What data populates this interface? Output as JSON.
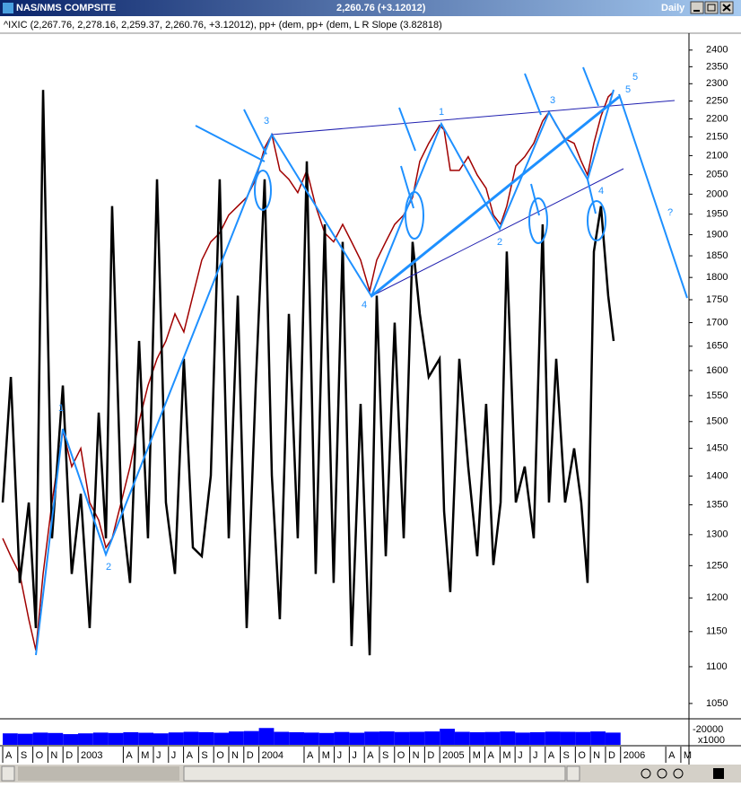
{
  "window": {
    "title": "NAS/NMS COMPSITE",
    "quote": "2,260.76 (+3.12012)",
    "interval": "Daily"
  },
  "legend": "^IXIC (2,267.76, 2,278.16, 2,259.37, 2,260.76, +3.12012), pp+ (dem, pp+ (dem, L R Slope (3.82818)",
  "chart_data": {
    "type": "line",
    "log_y": true,
    "x": [
      0,
      0.54,
      1.13,
      1.73,
      2.2,
      2.68,
      3.27,
      3.99,
      4.58,
      5.18,
      5.77,
      6.37,
      6.85,
      7.26,
      7.86,
      8.45,
      9.05,
      9.64,
      10.24,
      10.83,
      11.43,
      12.02,
      12.62,
      13.21,
      13.81,
      14.4,
      15,
      15.6,
      16.19,
      16.79,
      17.38,
      17.86,
      18.39,
      18.99,
      19.58,
      20.18,
      20.77,
      21.37,
      21.96,
      22.56,
      23.15,
      23.75,
      24.35,
      24.82,
      25.42,
      26.01,
      26.61,
      27.2,
      27.68,
      28.27,
      28.99,
      29.29,
      29.7,
      30.3,
      30.89,
      31.49,
      32.08,
      32.56,
      33.04,
      33.45,
      34.05,
      34.64,
      35.24,
      35.83,
      36.25,
      36.73,
      37.32,
      37.92,
      38.39,
      38.81,
      39.23,
      39.7,
      40.18,
      40.54
    ],
    "xlim": [
      -0.18,
      45.54
    ],
    "xticks": [
      {
        "value": 0,
        "label": "A"
      },
      {
        "value": 1,
        "label": "S"
      },
      {
        "value": 2,
        "label": "O"
      },
      {
        "value": 3,
        "label": "N"
      },
      {
        "value": 4,
        "label": "D"
      },
      {
        "value": 5,
        "label": "2003"
      },
      {
        "value": 8,
        "label": "A"
      },
      {
        "value": 9,
        "label": "M"
      },
      {
        "value": 10,
        "label": "J"
      },
      {
        "value": 11,
        "label": "J"
      },
      {
        "value": 12,
        "label": "A"
      },
      {
        "value": 13,
        "label": "S"
      },
      {
        "value": 14,
        "label": "O"
      },
      {
        "value": 15,
        "label": "N"
      },
      {
        "value": 16,
        "label": "D"
      },
      {
        "value": 17,
        "label": "2004"
      },
      {
        "value": 20,
        "label": "A"
      },
      {
        "value": 21,
        "label": "M"
      },
      {
        "value": 22,
        "label": "J"
      },
      {
        "value": 23,
        "label": "J"
      },
      {
        "value": 24,
        "label": "A"
      },
      {
        "value": 25,
        "label": "S"
      },
      {
        "value": 26,
        "label": "O"
      },
      {
        "value": 27,
        "label": "N"
      },
      {
        "value": 28,
        "label": "D"
      },
      {
        "value": 29,
        "label": "2005"
      },
      {
        "value": 31,
        "label": "M"
      },
      {
        "value": 32,
        "label": "A"
      },
      {
        "value": 33,
        "label": "M"
      },
      {
        "value": 34,
        "label": "J"
      },
      {
        "value": 35,
        "label": "J"
      },
      {
        "value": 36,
        "label": "A"
      },
      {
        "value": 37,
        "label": "S"
      },
      {
        "value": 38,
        "label": "O"
      },
      {
        "value": 39,
        "label": "N"
      },
      {
        "value": 40,
        "label": "D"
      },
      {
        "value": 41,
        "label": "2006"
      },
      {
        "value": 44,
        "label": "A"
      },
      {
        "value": 45,
        "label": "M"
      }
    ],
    "ylim": [
      1031,
      2449
    ],
    "yticks": [
      1050,
      1100,
      1150,
      1200,
      1250,
      1300,
      1350,
      1400,
      1450,
      1500,
      1550,
      1600,
      1650,
      1700,
      1750,
      1800,
      1850,
      1900,
      1950,
      2000,
      2050,
      2100,
      2150,
      2200,
      2250,
      2300,
      2350,
      2400
    ],
    "series": [
      {
        "color": "#a00000",
        "values": [
          1294,
          1265,
          1237,
          1168,
          1123,
          1237,
          1354,
          1483,
          1417,
          1450,
          1354,
          1324,
          1279,
          1294,
          1354,
          1417,
          1500,
          1570,
          1624,
          1661,
          1719,
          1680,
          1759,
          1840,
          1883,
          1904,
          1948,
          1970,
          1992,
          2038,
          2121,
          2157,
          2061,
          2038,
          2004,
          2061,
          1970,
          1904,
          1883,
          1925,
          1883,
          1840,
          1769,
          1840,
          1883,
          1925,
          1948,
          1992,
          2085,
          2133,
          2182,
          2170,
          2061,
          2061,
          2097,
          2049,
          2015,
          1948,
          1925,
          1970,
          2073,
          2097,
          2133,
          2194,
          2219,
          2182,
          2145,
          2133,
          2085,
          2049,
          2133,
          2207,
          2262,
          2277
        ]
      },
      {
        "color": "#000000",
        "values": [
          1354,
          1587,
          1223,
          1354,
          1155,
          2282,
          1294,
          1570,
          1237,
          1369,
          1155,
          1517,
          1294,
          1970,
          1354,
          1223,
          1661,
          1294,
          2038,
          1354,
          1237,
          1624,
          1279,
          1265,
          1401,
          2038,
          1294,
          1759,
          1155,
          1570,
          2038,
          1401,
          1168,
          1719,
          1294,
          2085,
          1237,
          1925,
          1223,
          1883,
          1129,
          1534,
          1116,
          1759,
          1265,
          1700,
          1294,
          1883,
          1719,
          1587,
          1624,
          1339,
          1209,
          1624,
          1417,
          1265,
          1534,
          1251,
          1354,
          1860,
          1354,
          1417,
          1294,
          1925,
          1354,
          1624,
          1354,
          1450,
          1354,
          1223,
          1860,
          1970,
          1759,
          1661
        ]
      }
    ],
    "annotations": [
      "1",
      "2",
      "3",
      "4",
      "1",
      "2",
      "3",
      "4",
      "5",
      "5",
      "?"
    ],
    "volume": {
      "unit": "x1000",
      "ylim": [
        0,
        31700
      ],
      "yticks": [
        {
          "value": 20000,
          "label": "-20000"
        }
      ],
      "color": "#0000ff",
      "values": [
        15000,
        14500,
        16000,
        15500,
        14000,
        15000,
        16000,
        15500,
        16500,
        15800,
        15000,
        16200,
        17000,
        16500,
        15800,
        17500,
        18000,
        22000,
        17000,
        16500,
        16000,
        15500,
        16800,
        15800,
        17200,
        17500,
        16800,
        17000,
        17500,
        21000,
        17000,
        16500,
        16800,
        17500,
        16000,
        16500,
        17200,
        17000,
        16800,
        17500,
        16000
      ]
    }
  }
}
